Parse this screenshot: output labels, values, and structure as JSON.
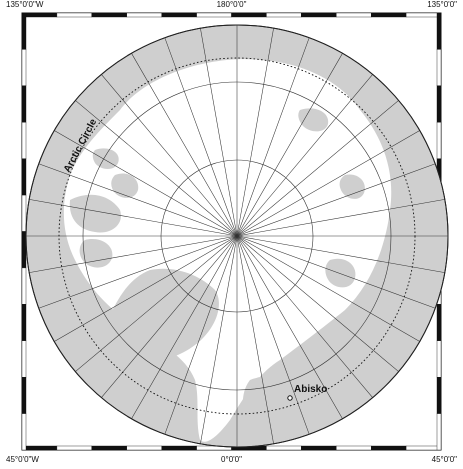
{
  "map": {
    "labels": {
      "top_left": "135°0'0\"W",
      "top_center": "180°0'0\"",
      "top_right": "135°0'0\"",
      "bottom_left": "45°0'0\"W",
      "bottom_center": "0°0'0\"",
      "bottom_right": "45°0'0\""
    },
    "projection": "polar-stereographic-north",
    "circle_label": "Arctic Circle",
    "place": {
      "name": "Abisko"
    },
    "colors": {
      "land": "#cfcfcf",
      "ocean": "#ffffff",
      "outline": "#222222",
      "grid": "#333333"
    },
    "meridian_count": 36,
    "parallel_count": 3
  }
}
